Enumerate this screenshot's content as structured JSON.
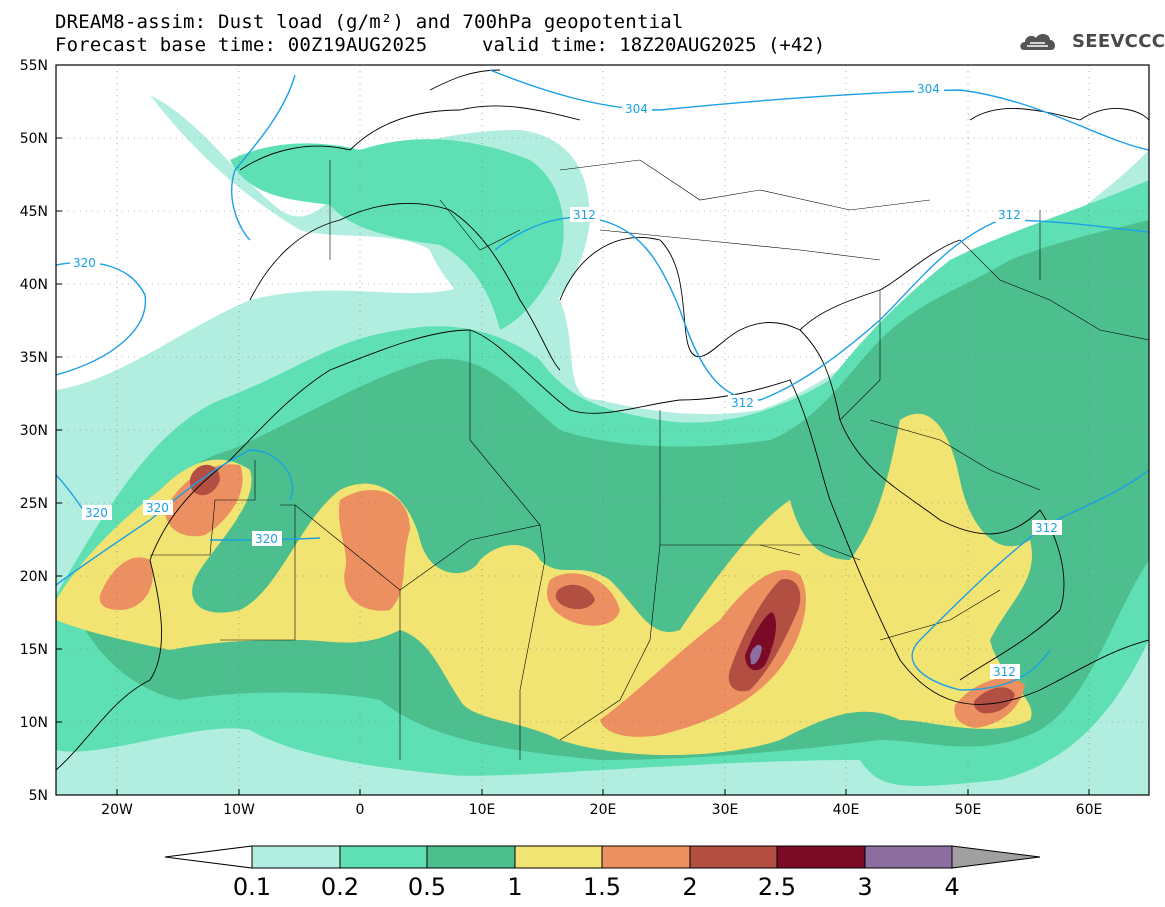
{
  "title": {
    "line1": "DREAM8-assim: Dust load (g/m²) and 700hPa geopotential",
    "line2": "Forecast base time: 00Z19AUG2025",
    "valid": "valid time: 18Z20AUG2025 (+42)"
  },
  "logo": {
    "text": "SEEVCCC",
    "icon": "cloud-icon"
  },
  "axes": {
    "lon_ticks": [
      "20W",
      "10W",
      "0",
      "10E",
      "20E",
      "30E",
      "40E",
      "50E",
      "60E"
    ],
    "lat_ticks": [
      "55N",
      "50N",
      "45N",
      "40N",
      "35N",
      "30N",
      "25N",
      "20N",
      "15N",
      "10N",
      "5N"
    ]
  },
  "contours": {
    "labels": [
      "304",
      "304",
      "312",
      "312",
      "312",
      "312",
      "312",
      "320",
      "320",
      "320",
      "320"
    ]
  },
  "colorbar": {
    "levels": [
      "0.1",
      "0.2",
      "0.5",
      "1",
      "1.5",
      "2",
      "2.5",
      "3",
      "4"
    ],
    "colors": [
      "#b2eee0",
      "#5fe0b4",
      "#4dbf8e",
      "#f2e472",
      "#ec8f61",
      "#b24f42",
      "#7a0a26",
      "#8c6fa0",
      "#a0a0a0"
    ]
  }
}
